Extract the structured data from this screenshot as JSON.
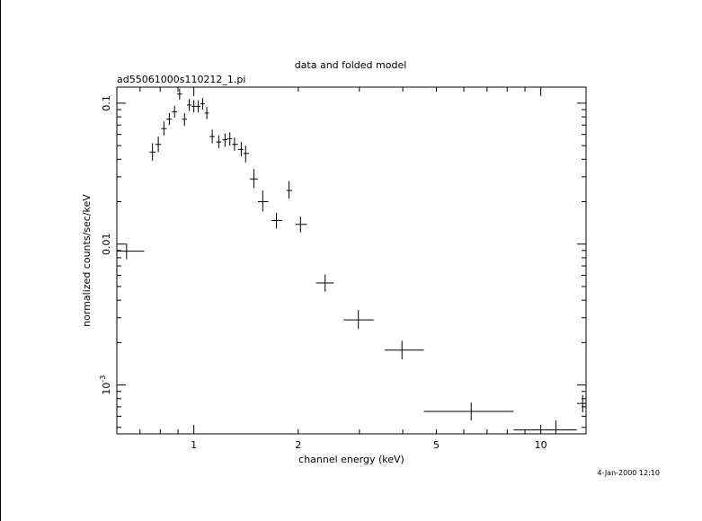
{
  "chart_data": {
    "type": "scatter",
    "title": "data and folded model",
    "subtitle": "ad55061000s110212_1.pi",
    "xlabel": "channel energy (keV)",
    "ylabel": "normalized counts/sec/keV",
    "timestamp": "4-Jan-2000 12:10",
    "x_scale": "log",
    "y_scale": "log",
    "xlim": [
      0.6,
      13.5
    ],
    "ylim": [
      0.00045,
      0.13
    ],
    "x_tick_labels": [
      {
        "value": 1,
        "label": "1"
      },
      {
        "value": 2,
        "label": "2"
      },
      {
        "value": 5,
        "label": "5"
      },
      {
        "value": 10,
        "label": "10"
      }
    ],
    "y_tick_labels": [
      {
        "value": 0.1,
        "label": "0.1"
      },
      {
        "value": 0.01,
        "label": "0.01"
      },
      {
        "value": 0.001,
        "label": "10",
        "exponent": "-3"
      }
    ],
    "grid": false,
    "series": [
      {
        "points": [
          {
            "x": 0.64,
            "xlo": 0.6,
            "xhi": 0.72,
            "y": 0.0089,
            "ylo": 0.0078,
            "yhi": 0.0101
          },
          {
            "x": 0.76,
            "xlo": 0.745,
            "xhi": 0.775,
            "y": 0.045,
            "ylo": 0.039,
            "yhi": 0.052
          },
          {
            "x": 0.79,
            "xlo": 0.775,
            "xhi": 0.805,
            "y": 0.051,
            "ylo": 0.045,
            "yhi": 0.058
          },
          {
            "x": 0.82,
            "xlo": 0.805,
            "xhi": 0.835,
            "y": 0.066,
            "ylo": 0.059,
            "yhi": 0.074
          },
          {
            "x": 0.85,
            "xlo": 0.835,
            "xhi": 0.865,
            "y": 0.077,
            "ylo": 0.07,
            "yhi": 0.085
          },
          {
            "x": 0.88,
            "xlo": 0.865,
            "xhi": 0.895,
            "y": 0.087,
            "ylo": 0.079,
            "yhi": 0.096
          },
          {
            "x": 0.91,
            "xlo": 0.895,
            "xhi": 0.925,
            "y": 0.116,
            "ylo": 0.106,
            "yhi": 0.127
          },
          {
            "x": 0.94,
            "xlo": 0.925,
            "xhi": 0.955,
            "y": 0.077,
            "ylo": 0.069,
            "yhi": 0.085
          },
          {
            "x": 0.97,
            "xlo": 0.955,
            "xhi": 0.985,
            "y": 0.097,
            "ylo": 0.088,
            "yhi": 0.107
          },
          {
            "x": 1.0,
            "xlo": 0.985,
            "xhi": 1.015,
            "y": 0.095,
            "ylo": 0.086,
            "yhi": 0.105
          },
          {
            "x": 1.03,
            "xlo": 1.015,
            "xhi": 1.045,
            "y": 0.095,
            "ylo": 0.086,
            "yhi": 0.105
          },
          {
            "x": 1.06,
            "xlo": 1.045,
            "xhi": 1.075,
            "y": 0.099,
            "ylo": 0.09,
            "yhi": 0.109
          },
          {
            "x": 1.09,
            "xlo": 1.075,
            "xhi": 1.105,
            "y": 0.085,
            "ylo": 0.077,
            "yhi": 0.094
          },
          {
            "x": 1.13,
            "xlo": 1.11,
            "xhi": 1.15,
            "y": 0.058,
            "ylo": 0.052,
            "yhi": 0.065
          },
          {
            "x": 1.18,
            "xlo": 1.16,
            "xhi": 1.2,
            "y": 0.053,
            "ylo": 0.048,
            "yhi": 0.059
          },
          {
            "x": 1.23,
            "xlo": 1.21,
            "xhi": 1.25,
            "y": 0.055,
            "ylo": 0.049,
            "yhi": 0.061
          },
          {
            "x": 1.27,
            "xlo": 1.25,
            "xhi": 1.29,
            "y": 0.056,
            "ylo": 0.05,
            "yhi": 0.062
          },
          {
            "x": 1.31,
            "xlo": 1.29,
            "xhi": 1.34,
            "y": 0.051,
            "ylo": 0.046,
            "yhi": 0.057
          },
          {
            "x": 1.37,
            "xlo": 1.34,
            "xhi": 1.39,
            "y": 0.047,
            "ylo": 0.042,
            "yhi": 0.053
          },
          {
            "x": 1.41,
            "xlo": 1.39,
            "xhi": 1.44,
            "y": 0.044,
            "ylo": 0.038,
            "yhi": 0.05
          },
          {
            "x": 1.49,
            "xlo": 1.45,
            "xhi": 1.53,
            "y": 0.029,
            "ylo": 0.025,
            "yhi": 0.034
          },
          {
            "x": 1.58,
            "xlo": 1.53,
            "xhi": 1.64,
            "y": 0.02,
            "ylo": 0.017,
            "yhi": 0.024
          },
          {
            "x": 1.73,
            "xlo": 1.67,
            "xhi": 1.8,
            "y": 0.0147,
            "ylo": 0.0129,
            "yhi": 0.0167
          },
          {
            "x": 1.88,
            "xlo": 1.85,
            "xhi": 1.92,
            "y": 0.024,
            "ylo": 0.021,
            "yhi": 0.028
          },
          {
            "x": 2.03,
            "xlo": 1.96,
            "xhi": 2.12,
            "y": 0.0138,
            "ylo": 0.0121,
            "yhi": 0.0157
          },
          {
            "x": 2.39,
            "xlo": 2.25,
            "xhi": 2.53,
            "y": 0.0053,
            "ylo": 0.0046,
            "yhi": 0.0061
          },
          {
            "x": 2.98,
            "xlo": 2.7,
            "xhi": 3.3,
            "y": 0.0029,
            "ylo": 0.0025,
            "yhi": 0.0034
          },
          {
            "x": 3.98,
            "xlo": 3.55,
            "xhi": 4.6,
            "y": 0.00177,
            "ylo": 0.00152,
            "yhi": 0.00206
          },
          {
            "x": 6.3,
            "xlo": 4.6,
            "xhi": 8.35,
            "y": 0.00065,
            "ylo": 0.00056,
            "yhi": 0.00075
          },
          {
            "x": 11.05,
            "xlo": 8.35,
            "xhi": 12.7,
            "y": 0.00048,
            "ylo": 0.00041,
            "yhi": 0.00056
          },
          {
            "x": 13.2,
            "xlo": 12.7,
            "xhi": 13.5,
            "y": 0.00074,
            "ylo": 0.00064,
            "yhi": 0.00085
          }
        ]
      }
    ]
  }
}
